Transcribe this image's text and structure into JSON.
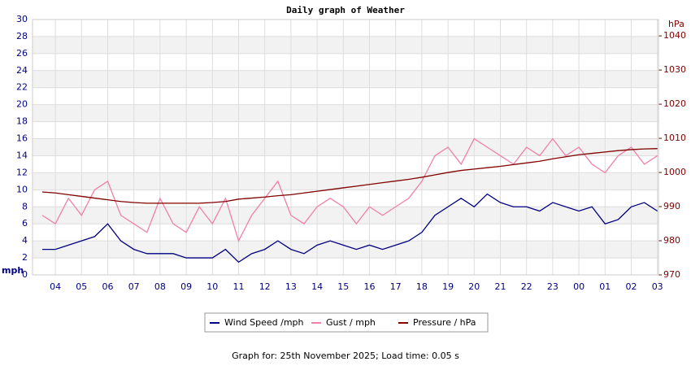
{
  "chart_data": {
    "type": "line",
    "title": "Daily graph of Weather",
    "y_label": "mph",
    "y2_label": "hPa",
    "categories": [
      null,
      "04",
      null,
      "05",
      null,
      "06",
      null,
      "07",
      null,
      "08",
      null,
      "09",
      null,
      "10",
      null,
      "11",
      null,
      "12",
      null,
      "13",
      null,
      "14",
      null,
      "15",
      null,
      "16",
      null,
      "17",
      null,
      "18",
      null,
      "19",
      null,
      "20",
      null,
      "21",
      null,
      "22",
      null,
      "23",
      null,
      "00",
      null,
      "01",
      null,
      "02",
      null,
      "03"
    ],
    "series": [
      {
        "name": "Wind Speed /mph",
        "color": "#000080",
        "values": [
          3,
          3,
          3.5,
          4,
          4.5,
          6,
          4,
          3,
          2.5,
          2.5,
          2.5,
          2,
          2,
          2,
          3,
          1.5,
          2.5,
          3,
          4,
          3,
          2.5,
          3.5,
          4,
          3.5,
          3,
          3.5,
          3,
          3.5,
          4,
          5,
          7,
          8,
          9,
          8,
          9.5,
          8.5,
          8,
          8,
          7.5,
          8.5,
          8,
          7.5,
          8,
          6,
          6.5,
          8,
          8.5,
          7.5
        ]
      },
      {
        "name": "Gust / mph",
        "color": "#f080a8",
        "values": [
          7,
          6,
          9,
          7,
          10,
          11,
          7,
          6,
          5,
          9,
          6,
          5,
          8,
          6,
          9,
          4,
          7,
          9,
          11,
          7,
          6,
          8,
          9,
          8,
          6,
          8,
          7,
          8,
          9,
          11,
          14,
          15,
          13,
          16,
          15,
          14,
          13,
          15,
          14,
          16,
          14,
          15,
          13,
          12,
          14,
          15,
          13,
          14
        ]
      },
      {
        "name": "Pressure / hPa",
        "color": "#800000",
        "axis": "y2",
        "values": [
          994.3,
          994,
          993.5,
          993,
          992.5,
          992,
          991.5,
          991.2,
          991,
          991,
          991,
          991,
          991,
          991.2,
          991.5,
          992.2,
          992.5,
          992.8,
          993.2,
          993.5,
          994,
          994.5,
          995,
          995.5,
          996,
          996.5,
          997,
          997.5,
          998,
          998.6,
          999.3,
          1000,
          1000.6,
          1001,
          1001.4,
          1001.8,
          1002.3,
          1002.8,
          1003.3,
          1004,
          1004.6,
          1005.2,
          1005.6,
          1006,
          1006.4,
          1006.7,
          1006.9,
          1007
        ]
      }
    ],
    "ylim": [
      0,
      30
    ],
    "yticks": [
      0,
      2,
      4,
      6,
      8,
      10,
      12,
      14,
      16,
      18,
      20,
      22,
      24,
      26,
      28,
      30
    ],
    "y2lim": [
      970,
      1044.8
    ],
    "y2ticks": [
      970,
      980,
      990,
      1000,
      1010,
      1020,
      1030,
      1040
    ],
    "grid": true,
    "legend": "bottom",
    "footer": "Graph for: 25th November 2025; Load time: 0.05 s"
  }
}
